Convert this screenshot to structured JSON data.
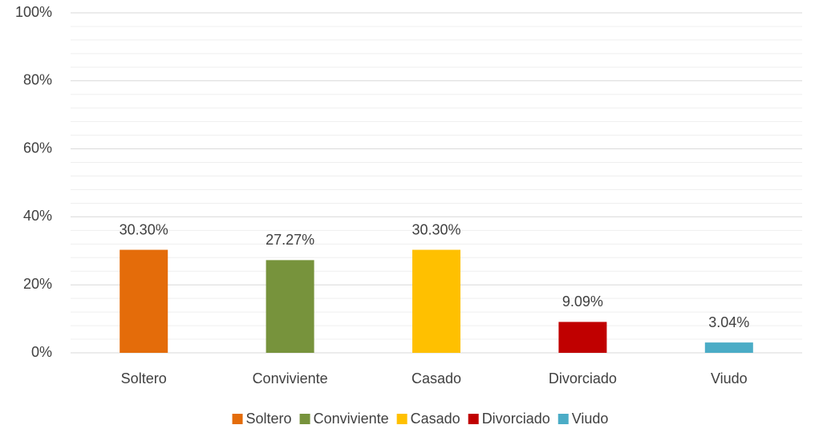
{
  "chart_data": {
    "type": "bar",
    "categories": [
      "Soltero",
      "Conviviente",
      "Casado",
      "Divorciado",
      "Viudo"
    ],
    "values": [
      30.3,
      27.27,
      30.3,
      9.09,
      3.04
    ],
    "value_labels": [
      "30.30%",
      "27.27%",
      "30.30%",
      "9.09%",
      "3.04%"
    ],
    "colors": [
      "#E46C0A",
      "#77933C",
      "#FFC000",
      "#C00000",
      "#4BACC6"
    ],
    "ylim": [
      0,
      100
    ],
    "yticks": [
      {
        "value": 0,
        "label": "0%"
      },
      {
        "value": 20,
        "label": "20%"
      },
      {
        "value": 40,
        "label": "40%"
      },
      {
        "value": 60,
        "label": "60%"
      },
      {
        "value": 80,
        "label": "80%"
      },
      {
        "value": 100,
        "label": "100%"
      }
    ],
    "grid": true,
    "minor_grid": true,
    "legend": "bottom"
  }
}
